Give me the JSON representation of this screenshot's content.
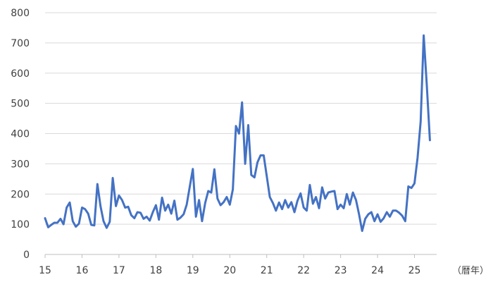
{
  "chart_data": {
    "type": "line",
    "title": "",
    "xlabel": "",
    "ylabel": "",
    "x_unit_label": "（暦年）",
    "ylim": [
      0,
      800
    ],
    "yticks": [
      0,
      100,
      200,
      300,
      400,
      500,
      600,
      700,
      800
    ],
    "xlim": [
      15,
      25.6
    ],
    "xticks": [
      15,
      16,
      17,
      18,
      19,
      20,
      21,
      22,
      23,
      24,
      25
    ],
    "grid": "horizontal",
    "legend": "none",
    "color": "#4472c4",
    "series": [
      {
        "x": [
          15.0,
          15.083,
          15.167,
          15.25,
          15.333,
          15.417,
          15.5,
          15.583,
          15.667,
          15.75,
          15.833,
          15.917,
          16.0,
          16.083,
          16.167,
          16.25,
          16.333,
          16.417,
          16.5,
          16.583,
          16.667,
          16.75,
          16.833,
          16.917,
          17.0,
          17.083,
          17.167,
          17.25,
          17.333,
          17.417,
          17.5,
          17.583,
          17.667,
          17.75,
          17.833,
          17.917,
          18.0,
          18.083,
          18.167,
          18.25,
          18.333,
          18.417,
          18.5,
          18.583,
          18.667,
          18.75,
          18.833,
          18.917,
          19.0,
          19.083,
          19.167,
          19.25,
          19.333,
          19.417,
          19.5,
          19.583,
          19.667,
          19.75,
          19.833,
          19.917,
          20.0,
          20.083,
          20.167,
          20.25,
          20.333,
          20.417,
          20.5,
          20.583,
          20.667,
          20.75,
          20.833,
          20.917,
          21.0,
          21.083,
          21.167,
          21.25,
          21.333,
          21.417,
          21.5,
          21.583,
          21.667,
          21.75,
          21.833,
          21.917,
          22.0,
          22.083,
          22.167,
          22.25,
          22.333,
          22.417,
          22.5,
          22.583,
          22.667,
          22.75,
          22.833,
          22.917,
          23.0,
          23.083,
          23.167,
          23.25,
          23.333,
          23.417,
          23.5,
          23.583,
          23.667,
          23.75,
          23.833,
          23.917,
          24.0,
          24.083,
          24.167,
          24.25,
          24.333,
          24.417,
          24.5,
          24.583,
          24.667,
          24.75,
          24.833,
          24.917,
          25.0,
          25.083,
          25.167,
          25.25,
          25.333,
          25.417
        ],
        "values": [
          120,
          90,
          98,
          105,
          105,
          118,
          100,
          155,
          172,
          110,
          92,
          102,
          155,
          150,
          135,
          98,
          96,
          233,
          160,
          110,
          88,
          108,
          253,
          160,
          195,
          180,
          155,
          158,
          130,
          120,
          140,
          138,
          118,
          125,
          112,
          140,
          163,
          115,
          188,
          145,
          165,
          135,
          178,
          115,
          122,
          133,
          165,
          225,
          283,
          125,
          180,
          110,
          170,
          210,
          205,
          282,
          185,
          163,
          173,
          190,
          165,
          215,
          425,
          400,
          503,
          300,
          428,
          263,
          255,
          305,
          328,
          328,
          260,
          190,
          170,
          145,
          172,
          150,
          180,
          155,
          173,
          140,
          178,
          202,
          155,
          145,
          230,
          168,
          190,
          153,
          222,
          185,
          205,
          208,
          210,
          150,
          165,
          153,
          200,
          165,
          205,
          180,
          133,
          78,
          118,
          133,
          140,
          110,
          133,
          108,
          120,
          140,
          125,
          145,
          145,
          138,
          128,
          110,
          225,
          220,
          235,
          320,
          440,
          725,
          560,
          378
        ]
      }
    ]
  }
}
